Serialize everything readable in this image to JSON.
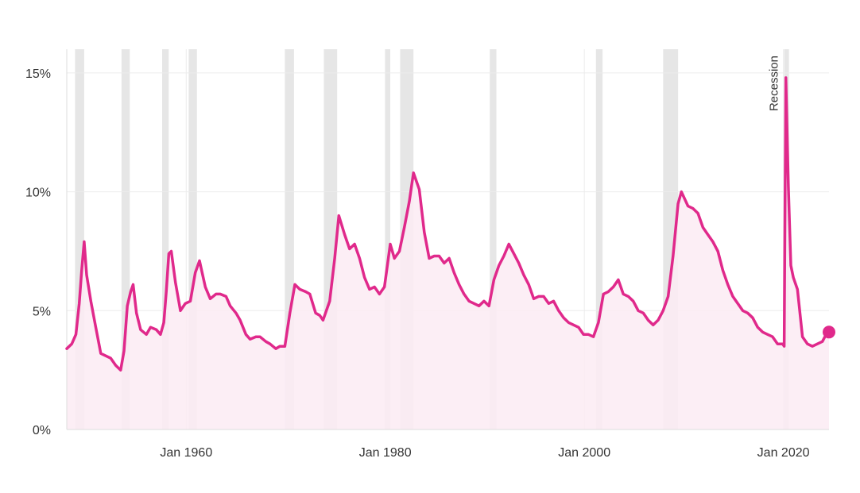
{
  "chart_data": {
    "type": "area",
    "title": "",
    "xlabel": "",
    "ylabel": "",
    "xlim": [
      "1948-01",
      "2024-08"
    ],
    "ylim": [
      0,
      16
    ],
    "grid": true,
    "y_ticks": [
      {
        "value": 0,
        "label": "0%"
      },
      {
        "value": 5,
        "label": "5%"
      },
      {
        "value": 10,
        "label": "10%"
      },
      {
        "value": 15,
        "label": "15%"
      }
    ],
    "x_ticks": [
      {
        "value": "1960-01",
        "label": "Jan 1960"
      },
      {
        "value": "1980-01",
        "label": "Jan 1980"
      },
      {
        "value": "2000-01",
        "label": "Jan 2000"
      },
      {
        "value": "2020-01",
        "label": "Jan 2020"
      }
    ],
    "annotation": {
      "label": "Recession",
      "period_index": 11
    },
    "recessions": [
      [
        "1948-11",
        "1949-10"
      ],
      [
        "1953-07",
        "1954-05"
      ],
      [
        "1957-08",
        "1958-04"
      ],
      [
        "1960-04",
        "1961-02"
      ],
      [
        "1969-12",
        "1970-11"
      ],
      [
        "1973-11",
        "1975-03"
      ],
      [
        "1980-01",
        "1980-07"
      ],
      [
        "1981-07",
        "1982-11"
      ],
      [
        "1990-07",
        "1991-03"
      ],
      [
        "2001-03",
        "2001-11"
      ],
      [
        "2007-12",
        "2009-06"
      ],
      [
        "2020-02",
        "2020-04"
      ]
    ],
    "series": [
      {
        "values": [
          [
            "1948-01",
            3.4
          ],
          [
            "1948-07",
            3.6
          ],
          [
            "1948-12",
            4.0
          ],
          [
            "1949-04",
            5.3
          ],
          [
            "1949-07",
            6.7
          ],
          [
            "1949-10",
            7.9
          ],
          [
            "1950-01",
            6.5
          ],
          [
            "1950-06",
            5.4
          ],
          [
            "1950-12",
            4.3
          ],
          [
            "1951-06",
            3.2
          ],
          [
            "1951-12",
            3.1
          ],
          [
            "1952-06",
            3.0
          ],
          [
            "1952-12",
            2.7
          ],
          [
            "1953-06",
            2.5
          ],
          [
            "1953-10",
            3.3
          ],
          [
            "1954-02",
            5.2
          ],
          [
            "1954-06",
            5.8
          ],
          [
            "1954-09",
            6.1
          ],
          [
            "1955-01",
            4.9
          ],
          [
            "1955-06",
            4.2
          ],
          [
            "1956-01",
            4.0
          ],
          [
            "1956-06",
            4.3
          ],
          [
            "1957-01",
            4.2
          ],
          [
            "1957-06",
            4.0
          ],
          [
            "1957-10",
            4.5
          ],
          [
            "1958-01",
            5.8
          ],
          [
            "1958-04",
            7.4
          ],
          [
            "1958-07",
            7.5
          ],
          [
            "1958-12",
            6.2
          ],
          [
            "1959-06",
            5.0
          ],
          [
            "1959-12",
            5.3
          ],
          [
            "1960-06",
            5.4
          ],
          [
            "1960-12",
            6.6
          ],
          [
            "1961-05",
            7.1
          ],
          [
            "1961-12",
            6.0
          ],
          [
            "1962-06",
            5.5
          ],
          [
            "1963-01",
            5.7
          ],
          [
            "1963-06",
            5.7
          ],
          [
            "1964-01",
            5.6
          ],
          [
            "1964-06",
            5.2
          ],
          [
            "1965-01",
            4.9
          ],
          [
            "1965-06",
            4.6
          ],
          [
            "1966-01",
            4.0
          ],
          [
            "1966-06",
            3.8
          ],
          [
            "1967-01",
            3.9
          ],
          [
            "1967-06",
            3.9
          ],
          [
            "1968-01",
            3.7
          ],
          [
            "1968-06",
            3.6
          ],
          [
            "1969-01",
            3.4
          ],
          [
            "1969-06",
            3.5
          ],
          [
            "1969-12",
            3.5
          ],
          [
            "1970-06",
            4.9
          ],
          [
            "1970-12",
            6.1
          ],
          [
            "1971-06",
            5.9
          ],
          [
            "1972-01",
            5.8
          ],
          [
            "1972-06",
            5.7
          ],
          [
            "1973-01",
            4.9
          ],
          [
            "1973-06",
            4.8
          ],
          [
            "1973-10",
            4.6
          ],
          [
            "1974-06",
            5.4
          ],
          [
            "1974-12",
            7.2
          ],
          [
            "1975-05",
            9.0
          ],
          [
            "1975-12",
            8.2
          ],
          [
            "1976-06",
            7.6
          ],
          [
            "1976-12",
            7.8
          ],
          [
            "1977-06",
            7.2
          ],
          [
            "1977-12",
            6.4
          ],
          [
            "1978-06",
            5.9
          ],
          [
            "1978-12",
            6.0
          ],
          [
            "1979-06",
            5.7
          ],
          [
            "1979-12",
            6.0
          ],
          [
            "1980-07",
            7.8
          ],
          [
            "1980-12",
            7.2
          ],
          [
            "1981-06",
            7.5
          ],
          [
            "1981-12",
            8.5
          ],
          [
            "1982-06",
            9.6
          ],
          [
            "1982-11",
            10.8
          ],
          [
            "1983-06",
            10.1
          ],
          [
            "1983-12",
            8.3
          ],
          [
            "1984-06",
            7.2
          ],
          [
            "1984-12",
            7.3
          ],
          [
            "1985-06",
            7.3
          ],
          [
            "1985-12",
            7.0
          ],
          [
            "1986-06",
            7.2
          ],
          [
            "1986-12",
            6.6
          ],
          [
            "1987-06",
            6.1
          ],
          [
            "1987-12",
            5.7
          ],
          [
            "1988-06",
            5.4
          ],
          [
            "1988-12",
            5.3
          ],
          [
            "1989-06",
            5.2
          ],
          [
            "1989-12",
            5.4
          ],
          [
            "1990-06",
            5.2
          ],
          [
            "1990-12",
            6.3
          ],
          [
            "1991-06",
            6.9
          ],
          [
            "1991-12",
            7.3
          ],
          [
            "1992-06",
            7.8
          ],
          [
            "1992-12",
            7.4
          ],
          [
            "1993-06",
            7.0
          ],
          [
            "1993-12",
            6.5
          ],
          [
            "1994-06",
            6.1
          ],
          [
            "1994-12",
            5.5
          ],
          [
            "1995-06",
            5.6
          ],
          [
            "1995-12",
            5.6
          ],
          [
            "1996-06",
            5.3
          ],
          [
            "1996-12",
            5.4
          ],
          [
            "1997-06",
            5.0
          ],
          [
            "1997-12",
            4.7
          ],
          [
            "1998-06",
            4.5
          ],
          [
            "1998-12",
            4.4
          ],
          [
            "1999-06",
            4.3
          ],
          [
            "1999-12",
            4.0
          ],
          [
            "2000-06",
            4.0
          ],
          [
            "2000-12",
            3.9
          ],
          [
            "2001-06",
            4.5
          ],
          [
            "2001-12",
            5.7
          ],
          [
            "2002-06",
            5.8
          ],
          [
            "2002-12",
            6.0
          ],
          [
            "2003-06",
            6.3
          ],
          [
            "2003-12",
            5.7
          ],
          [
            "2004-06",
            5.6
          ],
          [
            "2004-12",
            5.4
          ],
          [
            "2005-06",
            5.0
          ],
          [
            "2005-12",
            4.9
          ],
          [
            "2006-06",
            4.6
          ],
          [
            "2006-12",
            4.4
          ],
          [
            "2007-06",
            4.6
          ],
          [
            "2007-12",
            5.0
          ],
          [
            "2008-06",
            5.6
          ],
          [
            "2008-12",
            7.3
          ],
          [
            "2009-06",
            9.5
          ],
          [
            "2009-10",
            10.0
          ],
          [
            "2010-06",
            9.4
          ],
          [
            "2010-12",
            9.3
          ],
          [
            "2011-06",
            9.1
          ],
          [
            "2011-12",
            8.5
          ],
          [
            "2012-06",
            8.2
          ],
          [
            "2012-12",
            7.9
          ],
          [
            "2013-06",
            7.5
          ],
          [
            "2013-12",
            6.7
          ],
          [
            "2014-06",
            6.1
          ],
          [
            "2014-12",
            5.6
          ],
          [
            "2015-06",
            5.3
          ],
          [
            "2015-12",
            5.0
          ],
          [
            "2016-06",
            4.9
          ],
          [
            "2016-12",
            4.7
          ],
          [
            "2017-06",
            4.3
          ],
          [
            "2017-12",
            4.1
          ],
          [
            "2018-06",
            4.0
          ],
          [
            "2018-12",
            3.9
          ],
          [
            "2019-06",
            3.6
          ],
          [
            "2019-12",
            3.6
          ],
          [
            "2020-02",
            3.5
          ],
          [
            "2020-04",
            14.8
          ],
          [
            "2020-07",
            10.2
          ],
          [
            "2020-10",
            6.9
          ],
          [
            "2021-01",
            6.4
          ],
          [
            "2021-06",
            5.9
          ],
          [
            "2021-12",
            3.9
          ],
          [
            "2022-06",
            3.6
          ],
          [
            "2022-12",
            3.5
          ],
          [
            "2023-06",
            3.6
          ],
          [
            "2023-12",
            3.7
          ],
          [
            "2024-06",
            4.1
          ],
          [
            "2024-08",
            4.1
          ]
        ]
      }
    ],
    "colors": {
      "line": "#e0298b",
      "area": "#fcebf3",
      "marker": "#e0298b",
      "recession": "#e6e6e6",
      "grid": "#ececec",
      "axis": "#dddddd",
      "text": "#333333"
    }
  }
}
